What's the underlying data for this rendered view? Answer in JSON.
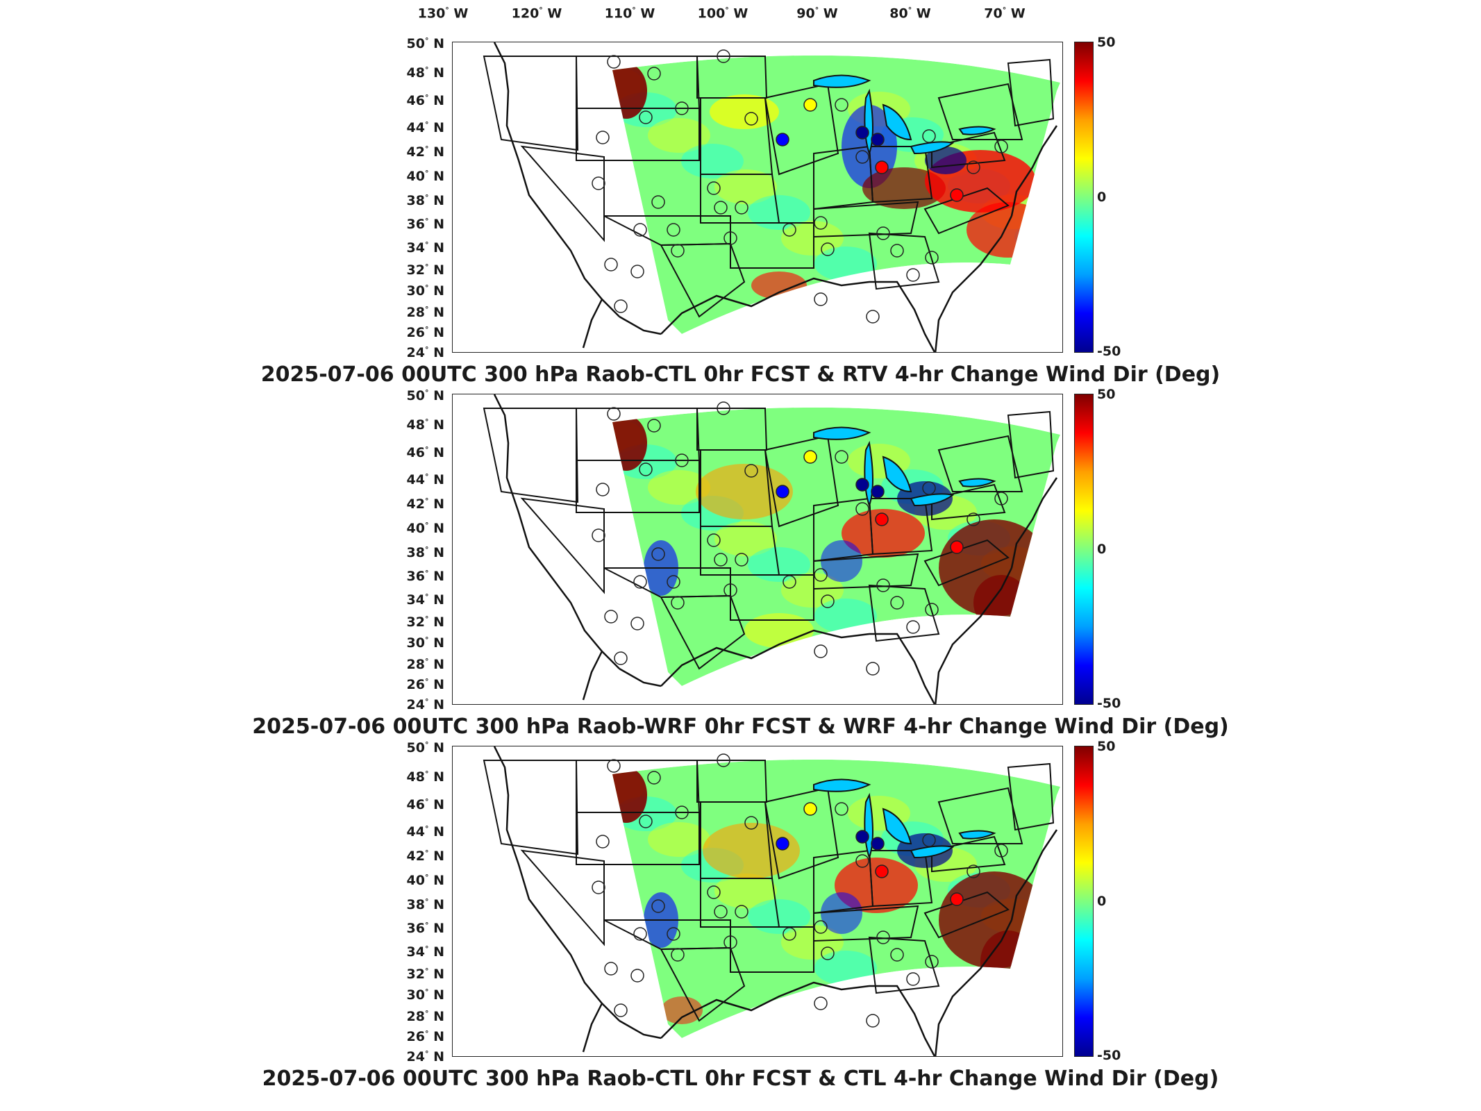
{
  "longitude_labels": [
    "130° W",
    "120° W",
    "110° W",
    "100° W",
    "90° W",
    "80° W",
    "70° W"
  ],
  "latitude_labels": [
    "50° N",
    "48° N",
    "46° N",
    "44° N",
    "42° N",
    "40° N",
    "38° N",
    "36° N",
    "34° N",
    "32° N",
    "30° N",
    "28° N",
    "26° N",
    "24° N"
  ],
  "colorbar": {
    "max_label": "50",
    "mid_label": "0",
    "min_label": "-50",
    "colors": [
      "#00008f",
      "#0000ff",
      "#00a0ff",
      "#00ffff",
      "#7fff7f",
      "#ffff00",
      "#ff9f00",
      "#ff0000",
      "#7f0000"
    ]
  },
  "panels": [
    {
      "title": "2025-07-06 00UTC 300 hPa Raob-CTL 0hr FCST & RTV 4-hr Change Wind Dir (Deg)"
    },
    {
      "title": "2025-07-06 00UTC 300 hPa Raob-WRF 0hr FCST & WRF 4-hr Change Wind Dir (Deg)"
    },
    {
      "title": "2025-07-06 00UTC 300 hPa Raob-CTL 0hr FCST & CTL 4-hr Change Wind Dir (Deg)"
    }
  ]
}
